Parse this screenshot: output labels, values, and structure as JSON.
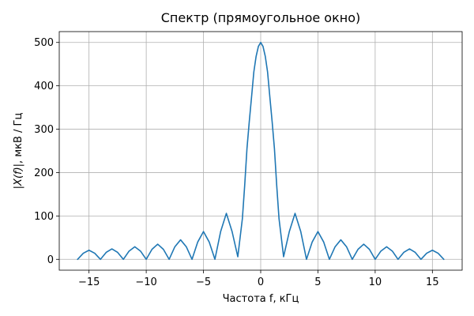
{
  "chart_data": {
    "type": "line",
    "title": "Спектр (прямоугольное окно)",
    "xlabel": "Частота f, кГц",
    "ylabel_math": "|X(f)|",
    "ylabel_text": ",  мкВ / Гц",
    "xlim": [
      -17.6,
      17.6
    ],
    "ylim": [
      -25,
      525
    ],
    "xticks": [
      -15,
      -10,
      -5,
      0,
      5,
      10,
      15
    ],
    "xtick_labels": [
      "−15",
      "−10",
      "−5",
      "0",
      "5",
      "10",
      "15"
    ],
    "yticks": [
      0,
      100,
      200,
      300,
      400,
      500
    ],
    "ytick_labels": [
      "0",
      "100",
      "200",
      "300",
      "400",
      "500"
    ],
    "grid": true,
    "line_color": "#1f77b4",
    "series": [
      {
        "x": [
          -16.0,
          -15.5,
          -15.0,
          -14.5,
          -14.0,
          -13.5,
          -13.0,
          -12.5,
          -12.0,
          -11.5,
          -11.0,
          -10.5,
          -10.0,
          -9.5,
          -9.0,
          -8.5,
          -8.0,
          -7.5,
          -7.0,
          -6.5,
          -6.0,
          -5.5,
          -5.0,
          -4.5,
          -4.0,
          -3.5,
          -3.0,
          -2.5,
          -2.0,
          -1.8,
          -1.6,
          -1.4,
          -1.2,
          -1.0,
          -0.8,
          -0.6,
          -0.4,
          -0.2,
          0.0,
          0.2,
          0.4,
          0.6,
          0.8,
          1.0,
          1.2,
          1.4,
          1.6,
          1.8,
          2.0,
          2.5,
          3.0,
          3.5,
          4.0,
          4.5,
          5.0,
          5.5,
          6.0,
          6.5,
          7.0,
          7.5,
          8.0,
          8.5,
          9.0,
          9.5,
          10.0,
          10.5,
          11.0,
          11.5,
          12.0,
          12.5,
          13.0,
          13.5,
          14.0,
          14.5,
          15.0,
          15.5,
          16.0
        ],
        "y": [
          0,
          14,
          21,
          14,
          0,
          16,
          24,
          16,
          0,
          19,
          29,
          19,
          0,
          23,
          35,
          23,
          0,
          29,
          45,
          29,
          0,
          40,
          64,
          40,
          0,
          64,
          106,
          64,
          6,
          50,
          94,
          170,
          255,
          317,
          374,
          432,
          468,
          491,
          500,
          491,
          468,
          432,
          374,
          317,
          255,
          170,
          94,
          50,
          6,
          64,
          106,
          64,
          0,
          40,
          64,
          40,
          0,
          29,
          45,
          29,
          0,
          23,
          35,
          23,
          0,
          19,
          29,
          19,
          0,
          16,
          24,
          16,
          0,
          14,
          21,
          14,
          0
        ]
      }
    ]
  }
}
